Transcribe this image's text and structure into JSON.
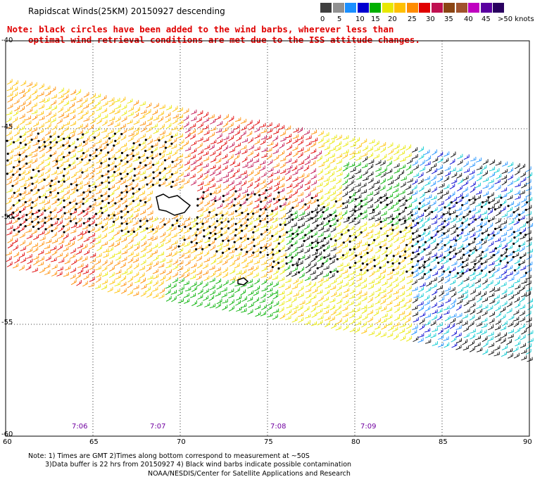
{
  "title": "Rapidscat Winds(25KM) 20150927 descending",
  "note_line1": "Note: black circles have been added to the wind barbs, wherever less than",
  "note_line2": "optimal wind retrieval conditions are met due to the ISS attitude changes.",
  "legend": {
    "units": ">50 knots",
    "colors": [
      "#404040",
      "#909090",
      "#1a8fff",
      "#0000d0",
      "#00b000",
      "#e8e800",
      "#ffc000",
      "#ff8c00",
      "#e00000",
      "#c01050",
      "#8b4513",
      "#a0522d",
      "#c000c0",
      "#5a00a0",
      "#2a0060"
    ],
    "labels": [
      "0",
      "5",
      "10",
      "15",
      "20",
      "25",
      "30",
      "35",
      "40",
      "45"
    ]
  },
  "axes": {
    "lon_labels": [
      "60",
      "65",
      "70",
      "75",
      "80",
      "85",
      "90"
    ],
    "lat_labels": [
      "-40",
      "-45",
      "-50",
      "-55",
      "-60"
    ]
  },
  "times": [
    "7:06",
    "7:07",
    "7:08",
    "7:09"
  ],
  "footer": {
    "line1": "Note: 1) Times are GMT 2)Times along bottom correspond to measurement at ~50S",
    "line2": "3)Data buffer is 22 hrs from 20150927 4) Black wind barbs indicate possible contamination",
    "credit": "NOAA/NESDIS/Center for Satellite Applications and Research"
  }
}
